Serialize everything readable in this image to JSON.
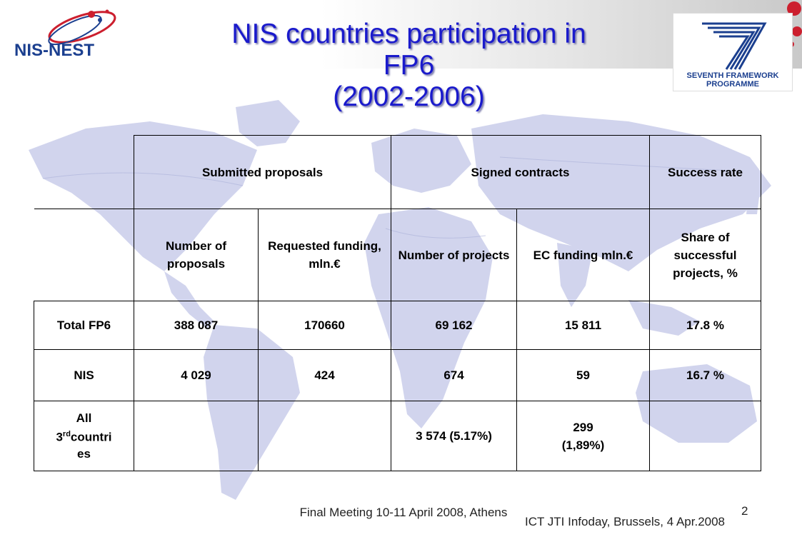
{
  "slide": {
    "title_lines": [
      "NIS countries participation in",
      "FP6",
      "(2002-2006)"
    ],
    "logo_left_text": "NIS-NEST",
    "logo_right_text": [
      "SEVENTH FRAMEWORK",
      "PROGRAMME"
    ],
    "logo_right_number": "7"
  },
  "table": {
    "group_headers": {
      "submitted": "Submitted proposals",
      "signed": "Signed contracts",
      "success": "Success rate"
    },
    "sub_headers": {
      "num_proposals": "Number of proposals",
      "requested_funding": "Requested funding, mln.€",
      "num_projects": "Number of projects",
      "ec_funding": "EC funding mln.€",
      "share": "Share of successful projects, %"
    },
    "rows": [
      {
        "label": "Total FP6",
        "num_proposals": "388 087",
        "requested_funding": "170660",
        "num_projects": "69 162",
        "ec_funding": "15 811",
        "share": "17.8 %"
      },
      {
        "label": "NIS",
        "num_proposals": "4 029",
        "requested_funding": "424",
        "num_projects": "674",
        "ec_funding": "59",
        "share": "16.7 %"
      }
    ],
    "third_row": {
      "label_pre": "All",
      "label_num": "3",
      "label_sup": "rd",
      "label_post1": "countri",
      "label_post2": "es",
      "num_projects": "3 574 (5.17%)",
      "ec_funding_line1": "299",
      "ec_funding_line2": "(1,89%)"
    }
  },
  "footer": {
    "left": "Final Meeting 10-11 April 2008, Athens",
    "right": "ICT JTI Infoday, Brussels, 4 Apr.2008",
    "page": "2"
  },
  "colors": {
    "title": "#1a1acc",
    "map": "#c8cce8",
    "logo_red": "#cc1f2e",
    "logo_blue": "#1b3f8f"
  }
}
